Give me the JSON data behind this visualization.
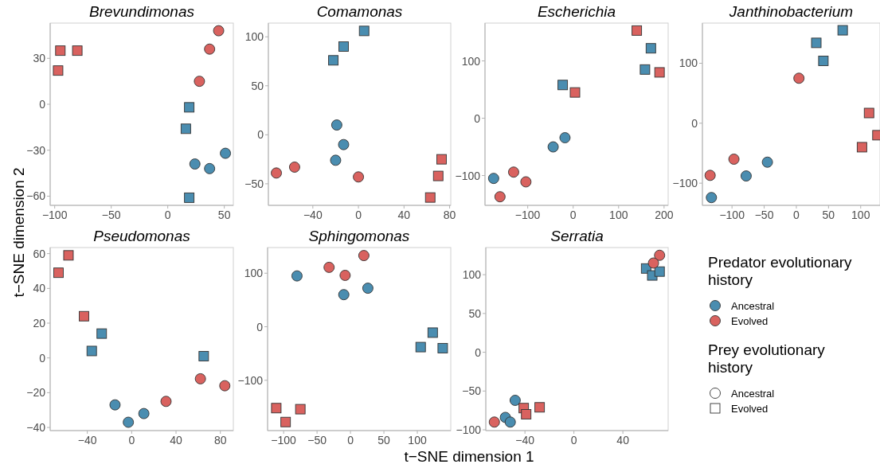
{
  "chart_data": [
    {
      "type": "scatter",
      "title": "Brevundimonas",
      "xlim": [
        -104,
        58
      ],
      "ylim": [
        -66,
        53
      ],
      "xticks": [
        -100,
        -50,
        0,
        50
      ],
      "yticks": [
        -60,
        -30,
        0,
        30
      ],
      "grid": false,
      "series": [
        {
          "color": "#4a8db0",
          "marker": "circle",
          "x": [
            51,
            24,
            37
          ],
          "values": [
            -32,
            -39,
            -42
          ]
        },
        {
          "color": "#4a8db0",
          "marker": "square",
          "x": [
            19,
            16,
            19
          ],
          "values": [
            -2,
            -16,
            -61
          ]
        },
        {
          "color": "#d9625f",
          "marker": "circle",
          "x": [
            45,
            37,
            28
          ],
          "values": [
            48,
            36,
            15
          ]
        },
        {
          "color": "#d9625f",
          "marker": "square",
          "x": [
            -95,
            -80,
            -97
          ],
          "values": [
            35,
            35,
            22
          ]
        }
      ]
    },
    {
      "type": "scatter",
      "title": "Comamonas",
      "xlim": [
        -79,
        81
      ],
      "ylim": [
        -72,
        114
      ],
      "xticks": [
        -40,
        0,
        40,
        80
      ],
      "yticks": [
        -50,
        0,
        50,
        100
      ],
      "grid": false,
      "series": [
        {
          "color": "#4a8db0",
          "marker": "circle",
          "x": [
            -19,
            -13,
            -20
          ],
          "values": [
            10,
            -10,
            -26
          ]
        },
        {
          "color": "#4a8db0",
          "marker": "square",
          "x": [
            5,
            -13,
            -22
          ],
          "values": [
            106,
            90,
            76
          ]
        },
        {
          "color": "#d9625f",
          "marker": "circle",
          "x": [
            -72,
            -56,
            0
          ],
          "values": [
            -39,
            -33,
            -43
          ]
        },
        {
          "color": "#d9625f",
          "marker": "square",
          "x": [
            73,
            70,
            63
          ],
          "values": [
            -25,
            -42,
            -64
          ]
        }
      ]
    },
    {
      "type": "scatter",
      "title": "Escherichia",
      "xlim": [
        -194,
        209
      ],
      "ylim": [
        -152,
        166
      ],
      "xticks": [
        -100,
        0,
        100,
        200
      ],
      "yticks": [
        -100,
        0,
        100
      ],
      "grid": false,
      "series": [
        {
          "color": "#4a8db0",
          "marker": "circle",
          "x": [
            -18,
            -44,
            -175
          ],
          "values": [
            -34,
            -50,
            -105
          ]
        },
        {
          "color": "#4a8db0",
          "marker": "square",
          "x": [
            171,
            158,
            -23
          ],
          "values": [
            122,
            85,
            58
          ]
        },
        {
          "color": "#d9625f",
          "marker": "circle",
          "x": [
            -131,
            -104,
            -161
          ],
          "values": [
            -94,
            -111,
            -137
          ]
        },
        {
          "color": "#d9625f",
          "marker": "square",
          "x": [
            140,
            190,
            4
          ],
          "values": [
            153,
            80,
            45
          ]
        }
      ]
    },
    {
      "type": "scatter",
      "title": "Janthinobacterium",
      "xlim": [
        -146,
        130
      ],
      "ylim": [
        -137,
        167
      ],
      "xticks": [
        -100,
        -50,
        0,
        50,
        100
      ],
      "yticks": [
        -100,
        0,
        100
      ],
      "grid": false,
      "series": [
        {
          "color": "#4a8db0",
          "marker": "circle",
          "x": [
            -45,
            -78,
            -132
          ],
          "values": [
            -65,
            -88,
            -124
          ]
        },
        {
          "color": "#4a8db0",
          "marker": "square",
          "x": [
            72,
            31,
            42
          ],
          "values": [
            155,
            134,
            104
          ]
        },
        {
          "color": "#d9625f",
          "marker": "circle",
          "x": [
            4,
            -97,
            -134
          ],
          "values": [
            75,
            -60,
            -87
          ]
        },
        {
          "color": "#d9625f",
          "marker": "square",
          "x": [
            113,
            126,
            102
          ],
          "values": [
            17,
            -20,
            -40
          ]
        }
      ]
    },
    {
      "type": "scatter",
      "title": "Pseudomonas",
      "annotations": [
        "t−SNE dimension 2"
      ],
      "xlim": [
        -73.5,
        91.7
      ],
      "ylim": [
        -41.8,
        63.5
      ],
      "xticks": [
        -40,
        0,
        40,
        80
      ],
      "yticks": [
        -40,
        -20,
        0,
        20,
        40,
        60
      ],
      "grid": false,
      "series": [
        {
          "color": "#4a8db0",
          "marker": "circle",
          "x": [
            -15,
            -3,
            11
          ],
          "values": [
            -27,
            -37,
            -32
          ]
        },
        {
          "color": "#4a8db0",
          "marker": "square",
          "x": [
            -27,
            -36,
            65
          ],
          "values": [
            14,
            4,
            1
          ]
        },
        {
          "color": "#d9625f",
          "marker": "circle",
          "x": [
            62,
            84,
            31
          ],
          "values": [
            -12,
            -16,
            -25
          ]
        },
        {
          "color": "#d9625f",
          "marker": "square",
          "x": [
            -57,
            -66,
            -43
          ],
          "values": [
            59,
            49,
            24
          ]
        }
      ]
    },
    {
      "type": "scatter",
      "title": "Sphingomonas",
      "annotations": [
        "t−SNE dimension 1"
      ],
      "xlim": [
        -124,
        150
      ],
      "ylim": [
        -194,
        148
      ],
      "xticks": [
        -100,
        -50,
        0,
        50,
        100
      ],
      "yticks": [
        -100,
        0,
        100
      ],
      "grid": false,
      "series": [
        {
          "color": "#4a8db0",
          "marker": "circle",
          "x": [
            -80,
            -10,
            26
          ],
          "values": [
            95,
            60,
            72
          ]
        },
        {
          "color": "#4a8db0",
          "marker": "square",
          "x": [
            123,
            105,
            138
          ],
          "values": [
            -11,
            -38,
            -40
          ]
        },
        {
          "color": "#d9625f",
          "marker": "circle",
          "x": [
            20,
            -32,
            -8
          ],
          "values": [
            133,
            111,
            96
          ]
        },
        {
          "color": "#d9625f",
          "marker": "square",
          "x": [
            -111,
            -75,
            -97
          ],
          "values": [
            -152,
            -154,
            -178
          ]
        }
      ]
    },
    {
      "type": "scatter",
      "title": "Serratia",
      "xlim": [
        -72,
        77
      ],
      "ylim": [
        -101,
        135
      ],
      "xticks": [
        -40,
        0,
        40
      ],
      "yticks": [
        -100,
        -50,
        0,
        50,
        100
      ],
      "grid": false,
      "series": [
        {
          "color": "#4a8db0",
          "marker": "circle",
          "x": [
            -48,
            -56,
            -52
          ],
          "values": [
            -62,
            -84,
            -90
          ]
        },
        {
          "color": "#4a8db0",
          "marker": "square",
          "x": [
            59,
            64,
            70
          ],
          "values": [
            108,
            99,
            104
          ]
        },
        {
          "color": "#d9625f",
          "marker": "circle",
          "x": [
            70,
            65,
            -65
          ],
          "values": [
            125,
            115,
            -90
          ]
        },
        {
          "color": "#d9625f",
          "marker": "square",
          "x": [
            -41,
            -39,
            -28
          ],
          "values": [
            -72,
            -80,
            -71
          ]
        }
      ]
    },
    {
      "type": "other",
      "legend_title": "Predator evolutionary history",
      "series": [
        {
          "name": "Ancestral",
          "color": "#4a8db0"
        },
        {
          "name": "Evolved",
          "color": "#d9625f"
        }
      ]
    },
    {
      "type": "other",
      "legend_title": "Prey evolutionary history",
      "series": [
        {
          "name": "Ancestral",
          "marker": "circle"
        },
        {
          "name": "Evolved",
          "marker": "square"
        }
      ]
    }
  ]
}
